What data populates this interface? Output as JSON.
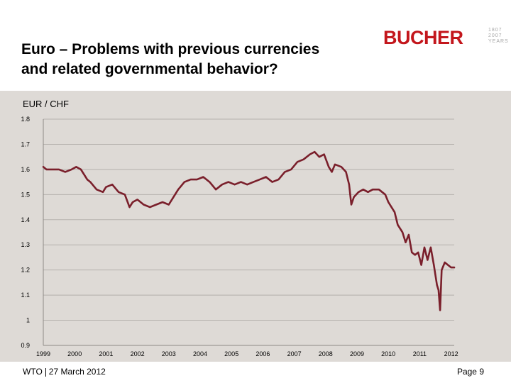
{
  "header": {
    "title_line1": "Euro – Problems with previous currencies",
    "title_line2": "and related governmental behavior?",
    "logo_text": "BUCHER",
    "logo_years": [
      "1807",
      "2007",
      "YEARS"
    ]
  },
  "footer": {
    "left_org": "WTO",
    "left_date": "27 March 2012",
    "right": "Page 9"
  },
  "colors": {
    "line": "#7a1f2b",
    "brand": "#c3161c",
    "panel": "#dedad6"
  },
  "chart_data": {
    "type": "line",
    "title": "EUR / CHF",
    "xlabel": "",
    "ylabel": "",
    "xlim": [
      1999,
      2012.1
    ],
    "ylim": [
      0.9,
      1.8
    ],
    "xticks": [
      1999,
      2000,
      2001,
      2002,
      2003,
      2004,
      2005,
      2006,
      2007,
      2008,
      2009,
      2010,
      2011,
      2012
    ],
    "xtick_labels": [
      "1999",
      "2000",
      "2001",
      "2002",
      "2003",
      "2004",
      "2005",
      "2006",
      "2007",
      "2008",
      "2009",
      "2010",
      "2011",
      "2012"
    ],
    "yticks": [
      0.9,
      1.0,
      1.1,
      1.2,
      1.3,
      1.4,
      1.5,
      1.6,
      1.7,
      1.8
    ],
    "ytick_labels": [
      "0.9",
      "1",
      "1.1",
      "1.2",
      "1.3",
      "1.4",
      "1.5",
      "1.6",
      "1.7",
      "1.8"
    ],
    "series": [
      {
        "name": "EUR / CHF",
        "x": [
          1999.0,
          1999.1,
          1999.3,
          1999.5,
          1999.7,
          1999.9,
          2000.05,
          2000.2,
          2000.4,
          2000.5,
          2000.7,
          2000.9,
          2001.0,
          2001.2,
          2001.4,
          2001.6,
          2001.75,
          2001.85,
          2002.0,
          2002.2,
          2002.4,
          2002.6,
          2002.8,
          2003.0,
          2003.1,
          2003.3,
          2003.5,
          2003.7,
          2003.9,
          2004.1,
          2004.3,
          2004.5,
          2004.7,
          2004.9,
          2005.1,
          2005.3,
          2005.5,
          2005.7,
          2005.9,
          2006.1,
          2006.3,
          2006.5,
          2006.7,
          2006.9,
          2007.1,
          2007.3,
          2007.5,
          2007.65,
          2007.8,
          2007.95,
          2008.1,
          2008.2,
          2008.3,
          2008.5,
          2008.65,
          2008.75,
          2008.82,
          2008.9,
          2009.05,
          2009.2,
          2009.35,
          2009.5,
          2009.7,
          2009.9,
          2010.0,
          2010.1,
          2010.2,
          2010.3,
          2010.45,
          2010.55,
          2010.65,
          2010.75,
          2010.85,
          2010.95,
          2011.05,
          2011.15,
          2011.25,
          2011.35,
          2011.45,
          2011.5,
          2011.55,
          2011.6,
          2011.65,
          2011.7,
          2011.8,
          2011.9,
          2012.0,
          2012.1
        ],
        "values": [
          1.61,
          1.6,
          1.6,
          1.6,
          1.59,
          1.6,
          1.61,
          1.6,
          1.56,
          1.55,
          1.52,
          1.51,
          1.53,
          1.54,
          1.51,
          1.5,
          1.45,
          1.47,
          1.48,
          1.46,
          1.45,
          1.46,
          1.47,
          1.46,
          1.48,
          1.52,
          1.55,
          1.56,
          1.56,
          1.57,
          1.55,
          1.52,
          1.54,
          1.55,
          1.54,
          1.55,
          1.54,
          1.55,
          1.56,
          1.57,
          1.55,
          1.56,
          1.59,
          1.6,
          1.63,
          1.64,
          1.66,
          1.67,
          1.65,
          1.66,
          1.61,
          1.59,
          1.62,
          1.61,
          1.59,
          1.54,
          1.46,
          1.49,
          1.51,
          1.52,
          1.51,
          1.52,
          1.52,
          1.5,
          1.47,
          1.45,
          1.43,
          1.38,
          1.35,
          1.31,
          1.34,
          1.27,
          1.26,
          1.27,
          1.22,
          1.29,
          1.24,
          1.29,
          1.22,
          1.18,
          1.14,
          1.12,
          1.04,
          1.2,
          1.23,
          1.22,
          1.21,
          1.21
        ]
      }
    ]
  }
}
